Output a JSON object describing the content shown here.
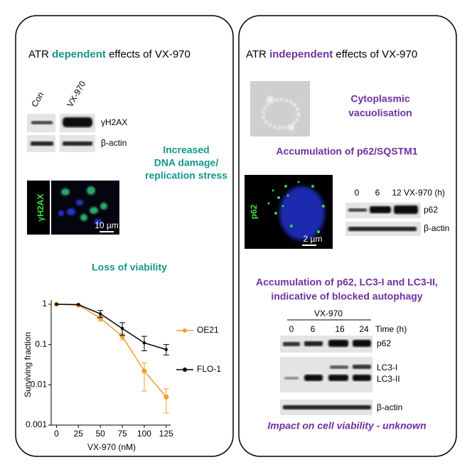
{
  "left": {
    "title": [
      "ATR",
      "dependent",
      "effects of VX-970"
    ],
    "blot": {
      "lanes": [
        "Con",
        "VX-970"
      ],
      "rows": [
        "γH2AX",
        "β-actin"
      ]
    },
    "dna_text": [
      "Increased",
      "DNA damage/",
      "replication stress"
    ],
    "if_label": "γH2AX",
    "scale_bar": "10 µm",
    "viability_title": "Loss of viability"
  },
  "chart_data": {
    "type": "line",
    "x_label": "VX-970  (nM)",
    "y_label": "Surviving fraction",
    "x": [
      0,
      25,
      50,
      75,
      100,
      125
    ],
    "xlim": [
      -6,
      130
    ],
    "xticks": [
      0,
      25,
      50,
      75,
      100,
      125
    ],
    "log_y": true,
    "ylim": [
      0.001,
      1
    ],
    "yticks": [
      1,
      0.1,
      0.01,
      0.001
    ],
    "grid": false,
    "legend": "right",
    "series": [
      {
        "name": "OE21",
        "color": "#f39c32",
        "values": [
          1,
          0.95,
          0.45,
          0.16,
          0.022,
          0.005
        ],
        "error_low": [
          null,
          null,
          0.38,
          0.13,
          0.007,
          0.002
        ],
        "error_high": [
          null,
          null,
          0.52,
          0.19,
          0.035,
          0.008
        ]
      },
      {
        "name": "FLO-1",
        "color": "#000000",
        "values": [
          1,
          0.98,
          0.58,
          0.25,
          0.11,
          0.075
        ],
        "error_low": [
          null,
          null,
          0.47,
          0.17,
          0.07,
          0.055
        ],
        "error_high": [
          null,
          null,
          0.7,
          0.35,
          0.16,
          0.1
        ]
      }
    ]
  },
  "right": {
    "title": [
      "ATR",
      "independent",
      "effects of VX-970"
    ],
    "vacuole_text": [
      "Cytoplasmic",
      "vacuolisation"
    ],
    "p62_title": "Accumulation of p62/SQSTM1",
    "if_label": "p62",
    "scale_bar": "2 µm",
    "blot2": {
      "lanes": [
        "0",
        "6",
        "12"
      ],
      "header": "VX-970 (h)",
      "rows": [
        "p62",
        "β-actin"
      ]
    },
    "autophagy_title": [
      "Accumulation of p62, LC3-I and LC3-II,",
      "indicative of blocked autophagy"
    ],
    "blot3": {
      "treatment": "VX-970",
      "lanes": [
        "0",
        "6",
        "16",
        "24"
      ],
      "time_label": "Time (h)",
      "rows": [
        "p62",
        "LC3-I",
        "LC3-II",
        "β-actin"
      ]
    },
    "impact": "Impact on cell viability - unknown"
  }
}
